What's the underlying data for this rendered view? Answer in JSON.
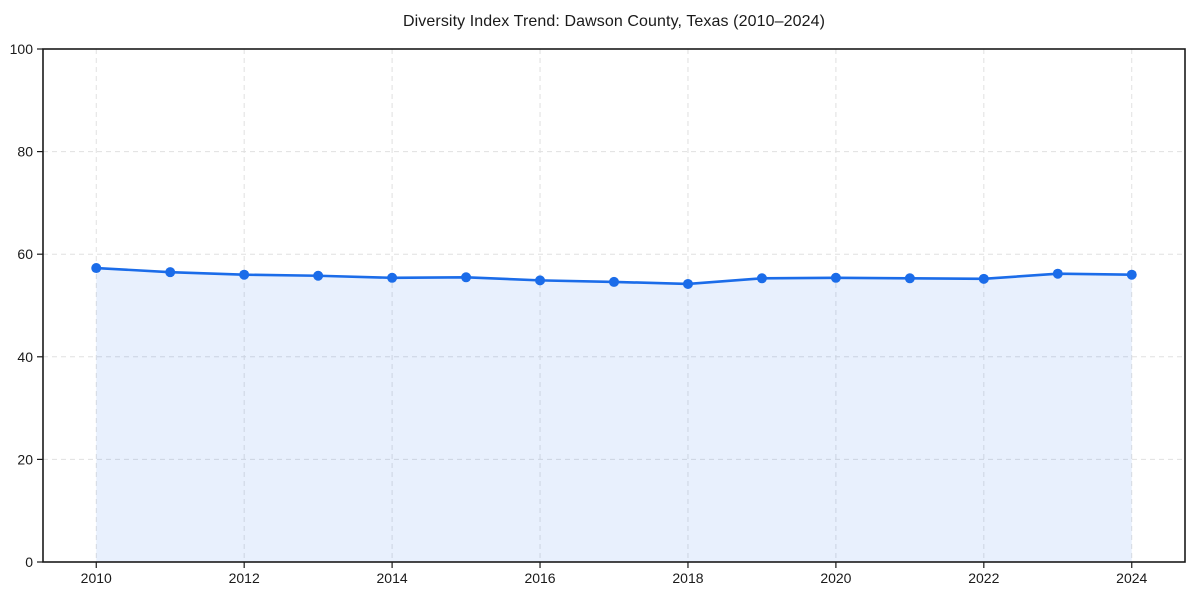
{
  "chart_data": {
    "type": "area",
    "title": "Diversity Index Trend: Dawson County, Texas (2010–2024)",
    "x": [
      2010,
      2011,
      2012,
      2013,
      2014,
      2015,
      2016,
      2017,
      2018,
      2019,
      2020,
      2021,
      2022,
      2023,
      2024
    ],
    "series": [
      {
        "name": "Diversity Index",
        "values": [
          57.3,
          56.5,
          56.0,
          55.8,
          55.4,
          55.5,
          54.9,
          54.6,
          54.2,
          55.3,
          55.4,
          55.3,
          55.2,
          56.2,
          56.0
        ]
      }
    ],
    "xlabel": "",
    "ylabel": "",
    "xlim": [
      2009.28,
      2024.72
    ],
    "ylim": [
      0,
      100
    ],
    "xticks": [
      2010,
      2012,
      2014,
      2016,
      2018,
      2020,
      2022,
      2024
    ],
    "yticks": [
      0,
      20,
      40,
      60,
      80,
      100
    ],
    "grid": true,
    "grid_style": "dashed",
    "legend_position": "none",
    "colors": {
      "line": "#1b6ce9",
      "marker": "#1b6ce9",
      "fill": "#1b6ce9",
      "fill_opacity": 0.1,
      "grid": "#e0e0e0",
      "axis": "#1a1a1a",
      "text": "#1a1a1a",
      "background": "#ffffff"
    }
  }
}
